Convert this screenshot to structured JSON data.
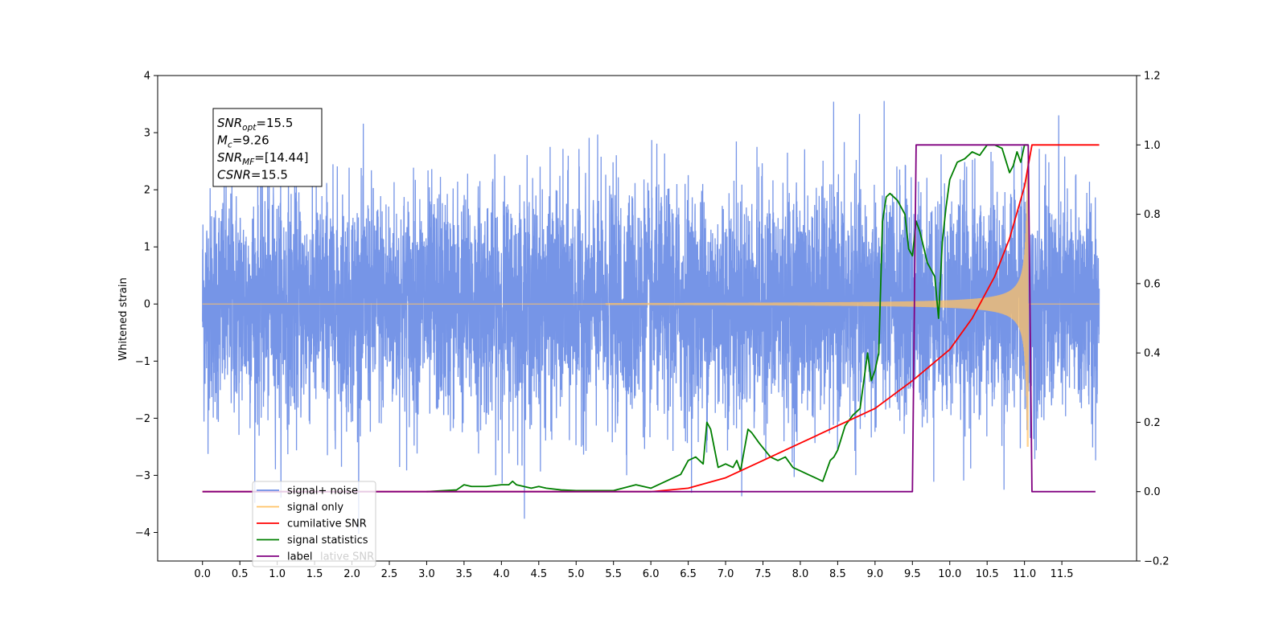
{
  "chart_data": {
    "type": "line",
    "title": "",
    "xlabel": "",
    "ylabel": "Whitened strain",
    "y2label": "",
    "xlim": [
      -0.6,
      12.5
    ],
    "ylim": [
      -4.5,
      4.0
    ],
    "y2lim": [
      -0.2,
      1.2
    ],
    "grid": false,
    "x_ticks": [
      "0.0",
      "0.5",
      "1.0",
      "1.5",
      "2.0",
      "2.5",
      "3.0",
      "3.5",
      "4.0",
      "4.5",
      "5.0",
      "5.5",
      "6.0",
      "6.5",
      "7.0",
      "7.5",
      "8.0",
      "8.5",
      "9.0",
      "9.5",
      "10.0",
      "10.5",
      "11.0",
      "11.5"
    ],
    "y_ticks": [
      "4",
      "3",
      "2",
      "1",
      "0",
      "−1",
      "−2",
      "−3",
      "−4"
    ],
    "y2_ticks": [
      "1.2",
      "1.0",
      "0.8",
      "0.6",
      "0.4",
      "0.2",
      "0.0",
      "−0.2"
    ],
    "annotation": {
      "lines": [
        {
          "base": "SNR",
          "sub": "opt",
          "rest": "=15.5"
        },
        {
          "base": "M",
          "sub": "c",
          "rest": "=9.26"
        },
        {
          "base": "SNR",
          "sub": "MF",
          "rest": "=[14.44]"
        },
        {
          "base": "CSNR",
          "sub": "",
          "rest": "=15.5"
        }
      ]
    },
    "legend": {
      "placement": "lower-left",
      "entries": [
        {
          "label": "signal+ noise",
          "color": "#6f8fe6"
        },
        {
          "label": "signal only",
          "color": "#ffc266"
        },
        {
          "label": "cumilative SNR",
          "color": "#ff0000"
        },
        {
          "label": "signal statistics",
          "color": "#007f00"
        },
        {
          "label": "label",
          "color": "#800080"
        }
      ],
      "ghost_text": "lative SNR"
    },
    "series": [
      {
        "name": "signal+ noise",
        "axis": "left",
        "color": "#6f8fe6",
        "x_range": [
          0.0,
          12.0
        ],
        "description_values": {
          "noise_std": 1.0,
          "min": -4.1,
          "max": 3.6
        }
      },
      {
        "name": "signal only",
        "axis": "left",
        "color": "#ffc266",
        "x_range": [
          0.0,
          12.0
        ],
        "chirp_start": 6.0,
        "chirp_peak_time": 11.05,
        "chirp_peak_amplitude": 2.5
      },
      {
        "name": "cumilative SNR",
        "axis": "right",
        "color": "#ff0000",
        "x": [
          0.0,
          6.0,
          6.5,
          7.0,
          7.5,
          8.0,
          8.5,
          9.0,
          9.5,
          10.0,
          10.3,
          10.6,
          10.8,
          11.0,
          11.1,
          12.0
        ],
        "y": [
          0.0,
          0.0,
          0.01,
          0.04,
          0.09,
          0.14,
          0.19,
          0.24,
          0.32,
          0.41,
          0.5,
          0.62,
          0.73,
          0.88,
          1.0,
          1.0
        ]
      },
      {
        "name": "signal statistics",
        "axis": "right",
        "color": "#007f00",
        "x": [
          3.0,
          3.4,
          3.5,
          3.6,
          3.8,
          4.0,
          4.1,
          4.15,
          4.2,
          4.4,
          4.5,
          4.6,
          4.8,
          5.0,
          5.5,
          5.8,
          6.0,
          6.2,
          6.4,
          6.5,
          6.6,
          6.7,
          6.75,
          6.8,
          6.9,
          7.0,
          7.1,
          7.15,
          7.2,
          7.3,
          7.35,
          7.45,
          7.6,
          7.7,
          7.8,
          7.9,
          8.0,
          8.1,
          8.2,
          8.3,
          8.4,
          8.45,
          8.5,
          8.6,
          8.7,
          8.8,
          8.9,
          8.95,
          9.0,
          9.05,
          9.1,
          9.15,
          9.2,
          9.3,
          9.4,
          9.45,
          9.5,
          9.55,
          9.6,
          9.7,
          9.8,
          9.85,
          9.9,
          9.95,
          10.0,
          10.1,
          10.2,
          10.3,
          10.4,
          10.5,
          10.6,
          10.7,
          10.8,
          10.85,
          10.9,
          10.95,
          11.0,
          11.05
        ],
        "y": [
          0.0,
          0.005,
          0.02,
          0.015,
          0.015,
          0.02,
          0.02,
          0.03,
          0.02,
          0.01,
          0.015,
          0.01,
          0.005,
          0.003,
          0.003,
          0.02,
          0.01,
          0.03,
          0.05,
          0.09,
          0.1,
          0.08,
          0.2,
          0.18,
          0.07,
          0.08,
          0.07,
          0.09,
          0.06,
          0.18,
          0.17,
          0.14,
          0.1,
          0.09,
          0.1,
          0.07,
          0.06,
          0.05,
          0.04,
          0.03,
          0.09,
          0.1,
          0.12,
          0.19,
          0.22,
          0.24,
          0.4,
          0.32,
          0.35,
          0.4,
          0.78,
          0.85,
          0.86,
          0.84,
          0.8,
          0.7,
          0.68,
          0.78,
          0.75,
          0.66,
          0.62,
          0.5,
          0.72,
          0.82,
          0.9,
          0.95,
          0.96,
          0.98,
          0.97,
          1.0,
          1.0,
          0.99,
          0.92,
          0.94,
          0.98,
          0.95,
          1.0,
          1.0
        ]
      },
      {
        "name": "label",
        "axis": "right",
        "color": "#800080",
        "x": [
          0.0,
          9.5,
          9.55,
          11.05,
          11.1,
          11.95
        ],
        "y": [
          0.0,
          0.0,
          1.0,
          1.0,
          0.0,
          0.0
        ]
      }
    ]
  }
}
